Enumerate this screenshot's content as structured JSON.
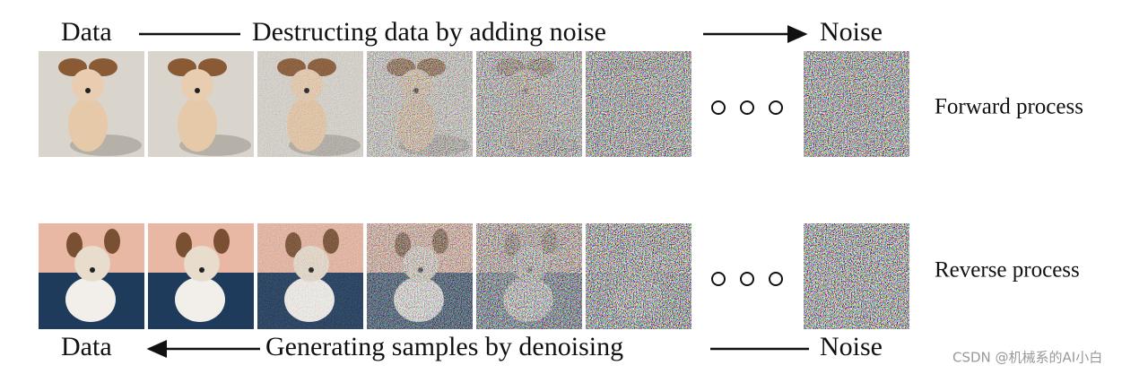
{
  "forward": {
    "start_label": "Data",
    "caption": "Destructing data by adding noise",
    "end_label": "Noise",
    "process_label": "Forward process"
  },
  "reverse": {
    "start_label": "Data",
    "caption": "Generating samples by denoising",
    "end_label": "Noise",
    "process_label": "Reverse process"
  },
  "watermark": "CSDN @机械系的AI小白"
}
